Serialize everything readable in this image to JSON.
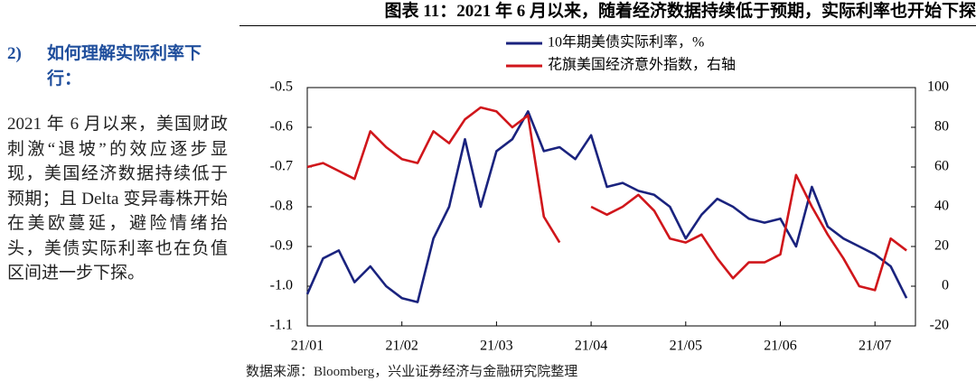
{
  "sidebar": {
    "number": "2)",
    "heading": "如何理解实际利率下行：",
    "paragraph": "2021 年 6 月以来，美国财政刺激“退坡”的效应逐步显现，美国经济数据持续低于预期；且 Delta 变异毒株开始在美欧蔓延，避险情绪抬头，美债实际利率也在负值区间进一步下探。"
  },
  "chart_data": {
    "type": "line",
    "title": "图表 11：2021 年 6 月以来，随着经济数据持续低于预期，实际利率也开始下探",
    "categories": [
      "21/01",
      null,
      null,
      null,
      null,
      null,
      "21/02",
      null,
      null,
      null,
      null,
      null,
      "21/03",
      null,
      null,
      null,
      null,
      null,
      "21/04",
      null,
      null,
      null,
      null,
      null,
      "21/05",
      null,
      null,
      null,
      null,
      null,
      "21/06",
      null,
      null,
      null,
      null,
      null,
      "21/07",
      null,
      null
    ],
    "series": [
      {
        "name": "10年期美债实际利率，%",
        "color": "#1a237e",
        "axis": "y",
        "values": [
          -1.02,
          -0.93,
          -0.91,
          -0.99,
          -0.95,
          -1.0,
          -1.03,
          -1.04,
          -0.88,
          -0.8,
          -0.63,
          -0.8,
          -0.66,
          -0.63,
          -0.56,
          -0.66,
          -0.65,
          -0.68,
          -0.62,
          -0.75,
          -0.74,
          -0.76,
          -0.77,
          -0.8,
          -0.88,
          -0.82,
          -0.78,
          -0.8,
          -0.83,
          -0.84,
          -0.83,
          -0.9,
          -0.75,
          -0.85,
          -0.88,
          -0.9,
          -0.92,
          -0.95,
          -1.03
        ]
      },
      {
        "name": "花旗美国经济意外指数，右轴",
        "color": "#d0161b",
        "axis": "y2",
        "values": [
          60,
          62,
          58,
          54,
          78,
          70,
          64,
          62,
          78,
          72,
          84,
          90,
          88,
          80,
          86,
          35,
          22,
          null,
          40,
          36,
          40,
          46,
          38,
          24,
          22,
          26,
          14,
          4,
          12,
          12,
          16,
          56,
          40,
          26,
          14,
          0,
          -2,
          24,
          18
        ]
      }
    ],
    "ylim": [
      -1.1,
      -0.5
    ],
    "yticks": [
      -0.5,
      -0.6,
      -0.7,
      -0.8,
      -0.9,
      {
        "value": -1,
        "label": "-1.0"
      },
      -1.1
    ],
    "y2lim": [
      -20,
      100
    ],
    "y2ticks": [
      100,
      80,
      60,
      40,
      20,
      0,
      -20
    ],
    "source": "数据来源：Bloomberg，兴业证券经济与金融研究院整理"
  }
}
